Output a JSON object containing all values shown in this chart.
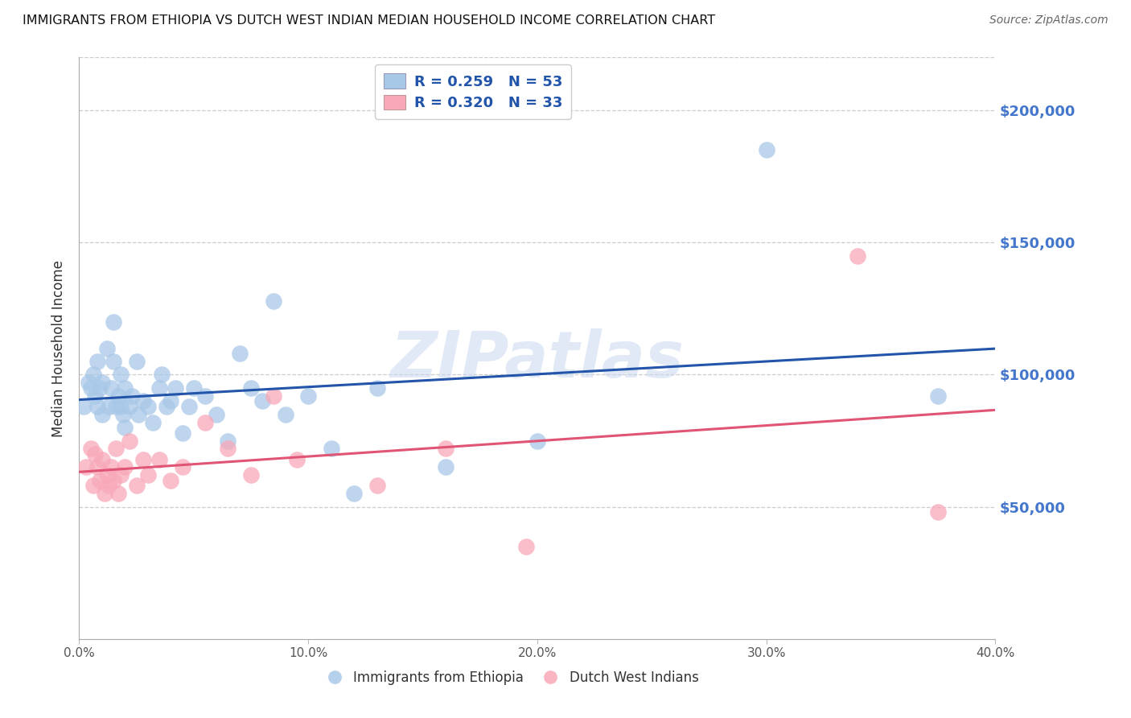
{
  "title": "IMMIGRANTS FROM ETHIOPIA VS DUTCH WEST INDIAN MEDIAN HOUSEHOLD INCOME CORRELATION CHART",
  "source": "Source: ZipAtlas.com",
  "ylabel": "Median Household Income",
  "xlim": [
    0.0,
    0.4
  ],
  "ylim": [
    0,
    220000
  ],
  "yticks": [
    50000,
    100000,
    150000,
    200000
  ],
  "ytick_labels": [
    "$50,000",
    "$100,000",
    "$150,000",
    "$200,000"
  ],
  "xticks": [
    0.0,
    0.1,
    0.2,
    0.3,
    0.4
  ],
  "xtick_labels": [
    "0.0%",
    "10.0%",
    "20.0%",
    "30.0%",
    "40.0%"
  ],
  "blue_color": "#A8C8E8",
  "pink_color": "#F8A8B8",
  "blue_line_color": "#2255AA",
  "pink_line_color": "#E05575",
  "ytick_color": "#4477CC",
  "legend_label1": "Immigrants from Ethiopia",
  "legend_label2": "Dutch West Indians",
  "watermark": "ZIPatlas",
  "blue_x": [
    0.002,
    0.004,
    0.005,
    0.006,
    0.007,
    0.008,
    0.008,
    0.009,
    0.01,
    0.01,
    0.012,
    0.013,
    0.014,
    0.015,
    0.015,
    0.016,
    0.017,
    0.018,
    0.018,
    0.019,
    0.02,
    0.02,
    0.022,
    0.023,
    0.025,
    0.026,
    0.028,
    0.03,
    0.032,
    0.035,
    0.036,
    0.038,
    0.04,
    0.042,
    0.045,
    0.048,
    0.05,
    0.055,
    0.06,
    0.065,
    0.07,
    0.075,
    0.08,
    0.085,
    0.09,
    0.1,
    0.11,
    0.12,
    0.13,
    0.16,
    0.2,
    0.3,
    0.375
  ],
  "blue_y": [
    88000,
    97000,
    95000,
    100000,
    92000,
    105000,
    88000,
    95000,
    85000,
    97000,
    110000,
    88000,
    95000,
    120000,
    105000,
    88000,
    92000,
    100000,
    88000,
    85000,
    95000,
    80000,
    88000,
    92000,
    105000,
    85000,
    90000,
    88000,
    82000,
    95000,
    100000,
    88000,
    90000,
    95000,
    78000,
    88000,
    95000,
    92000,
    85000,
    75000,
    108000,
    95000,
    90000,
    128000,
    85000,
    92000,
    72000,
    55000,
    95000,
    65000,
    75000,
    185000,
    92000
  ],
  "pink_x": [
    0.003,
    0.005,
    0.006,
    0.007,
    0.008,
    0.009,
    0.01,
    0.011,
    0.012,
    0.013,
    0.014,
    0.015,
    0.016,
    0.017,
    0.018,
    0.02,
    0.022,
    0.025,
    0.028,
    0.03,
    0.035,
    0.04,
    0.045,
    0.055,
    0.065,
    0.075,
    0.085,
    0.095,
    0.13,
    0.16,
    0.195,
    0.34,
    0.375
  ],
  "pink_y": [
    65000,
    72000,
    58000,
    70000,
    65000,
    60000,
    68000,
    55000,
    62000,
    58000,
    65000,
    60000,
    72000,
    55000,
    62000,
    65000,
    75000,
    58000,
    68000,
    62000,
    68000,
    60000,
    65000,
    82000,
    72000,
    62000,
    92000,
    68000,
    58000,
    72000,
    35000,
    145000,
    48000
  ]
}
